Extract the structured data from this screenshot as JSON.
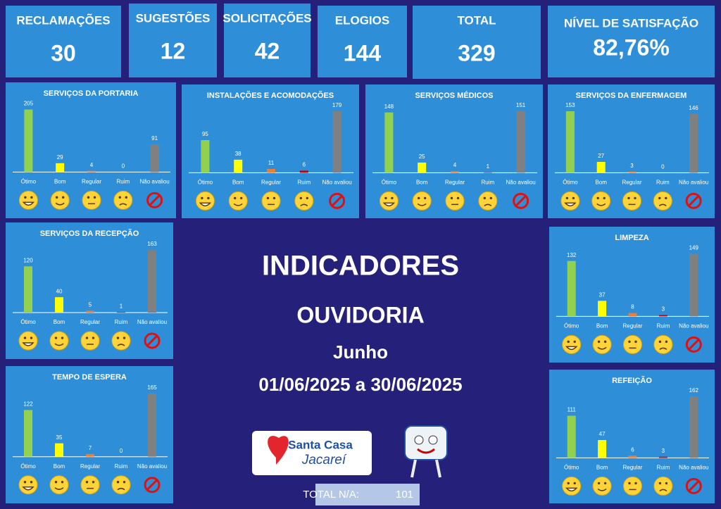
{
  "kpis": [
    {
      "label": "RECLAMAÇÕES",
      "value": 30
    },
    {
      "label": "SUGESTÕES",
      "value": 12
    },
    {
      "label": "SOLICITAÇÕES",
      "value": 42
    },
    {
      "label": "ELOGIOS",
      "value": 144
    },
    {
      "label": "TOTAL",
      "value": 329
    },
    {
      "label": "NÍVEL DE SATISFAÇÃO",
      "value": "82,76%"
    }
  ],
  "chart_data": [
    {
      "type": "bar",
      "title": "SERVIÇOS DA PORTARIA",
      "categories": [
        "Ótimo",
        "Bom",
        "Regular",
        "Ruim",
        "Não avaliou"
      ],
      "values": [
        205,
        29,
        4,
        0,
        91
      ],
      "colors": [
        "#92d050",
        "#ffff00",
        "#ed7d31",
        "#c00000",
        "#808080"
      ]
    },
    {
      "type": "bar",
      "title": "INSTALAÇÕES E ACOMODAÇÕES",
      "categories": [
        "Ótimo",
        "Bom",
        "Regular",
        "Ruim",
        "Não avaliou"
      ],
      "values": [
        95,
        38,
        11,
        6,
        179
      ],
      "colors": [
        "#92d050",
        "#ffff00",
        "#ed7d31",
        "#c00000",
        "#808080"
      ]
    },
    {
      "type": "bar",
      "title": "SERVIÇOS MÉDICOS",
      "categories": [
        "Ótimo",
        "Bom",
        "Regular",
        "Ruim",
        "Não avaliou"
      ],
      "values": [
        148,
        25,
        4,
        1,
        151
      ],
      "colors": [
        "#92d050",
        "#ffff00",
        "#ed7d31",
        "#c00000",
        "#808080"
      ]
    },
    {
      "type": "bar",
      "title": "SERVIÇOS DA ENFERMAGEM",
      "categories": [
        "Ótimo",
        "Bom",
        "Regular",
        "Ruim",
        "Não avaliou"
      ],
      "values": [
        153,
        27,
        3,
        0,
        146
      ],
      "colors": [
        "#92d050",
        "#ffff00",
        "#ed7d31",
        "#c00000",
        "#808080"
      ]
    },
    {
      "type": "bar",
      "title": "SERVIÇOS DA RECEPÇÃO",
      "categories": [
        "Ótimo",
        "Bom",
        "Regular",
        "Ruim",
        "Não avaliou"
      ],
      "values": [
        120,
        40,
        5,
        1,
        163
      ],
      "colors": [
        "#92d050",
        "#ffff00",
        "#ed7d31",
        "#c00000",
        "#808080"
      ]
    },
    {
      "type": "bar",
      "title": "TEMPO DE ESPERA",
      "categories": [
        "Ótimo",
        "Bom",
        "Regular",
        "Ruim",
        "Não avaliou"
      ],
      "values": [
        122,
        35,
        7,
        0,
        165
      ],
      "colors": [
        "#92d050",
        "#ffff00",
        "#ed7d31",
        "#c00000",
        "#808080"
      ]
    },
    {
      "type": "bar",
      "title": "LIMPEZA",
      "categories": [
        "Ótimo",
        "Bom",
        "Regular",
        "Ruim",
        "Não avaliou"
      ],
      "values": [
        132,
        37,
        8,
        3,
        149
      ],
      "colors": [
        "#92d050",
        "#ffff00",
        "#ed7d31",
        "#c00000",
        "#808080"
      ]
    },
    {
      "type": "bar",
      "title": "REFEIÇÃO",
      "categories": [
        "Ótimo",
        "Bom",
        "Regular",
        "Ruim",
        "Não avaliou"
      ],
      "values": [
        111,
        47,
        6,
        3,
        162
      ],
      "colors": [
        "#92d050",
        "#ffff00",
        "#ed7d31",
        "#c00000",
        "#808080"
      ]
    }
  ],
  "center": {
    "title": "INDICADORES",
    "subtitle": "OUVIDORIA",
    "month": "Junho",
    "period": "01/06/2025 a 30/06/2025"
  },
  "logo": {
    "line1": "Santa Casa",
    "line2": "Jacareí"
  },
  "total_na": {
    "label": "TOTAL N/A:",
    "value": 101
  }
}
